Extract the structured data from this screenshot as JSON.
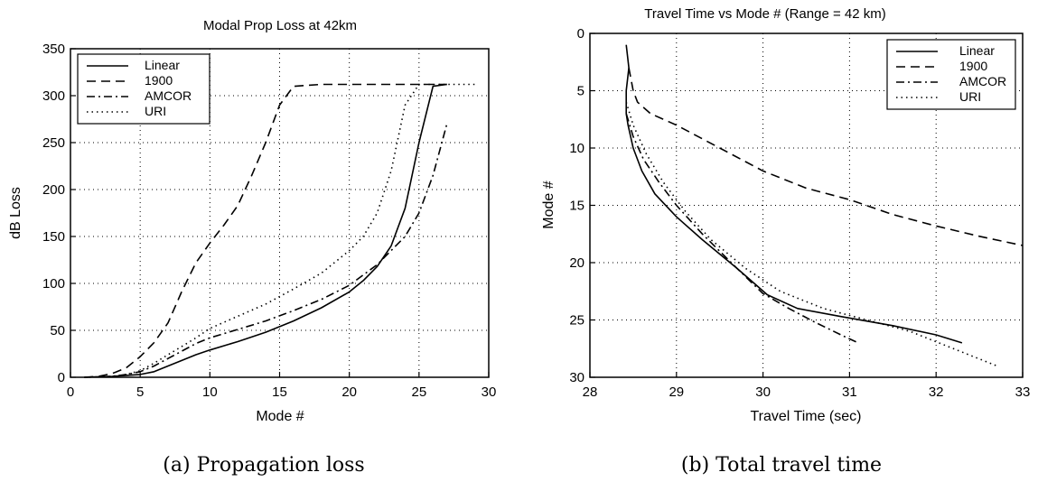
{
  "chart_data": [
    {
      "type": "line",
      "title": "Modal Prop Loss at 42km",
      "xlabel": "Mode #",
      "ylabel": "dB Loss",
      "xlim": [
        0,
        30
      ],
      "ylim": [
        0,
        350
      ],
      "xticks": [
        "0",
        "5",
        "10",
        "15",
        "20",
        "25",
        "30"
      ],
      "yticks": [
        "0",
        "50",
        "100",
        "150",
        "200",
        "250",
        "300",
        "350"
      ],
      "grid": true,
      "legend_position": "top-left",
      "caption": "(a) Propagation loss",
      "series": [
        {
          "name": "Linear",
          "style": "solid",
          "x": [
            1,
            2,
            3,
            4,
            5,
            6,
            7,
            8,
            9,
            10,
            12,
            14,
            16,
            18,
            20,
            21,
            22,
            23,
            24,
            25,
            26,
            27
          ],
          "y": [
            0,
            0.5,
            1,
            2,
            3,
            6,
            12,
            18,
            24,
            29,
            38,
            48,
            60,
            74,
            91,
            103,
            118,
            140,
            180,
            250,
            310,
            312
          ]
        },
        {
          "name": "1900",
          "style": "dashed",
          "x": [
            1,
            2,
            3,
            4,
            5,
            6,
            7,
            8,
            9,
            10,
            11,
            12,
            13,
            14,
            15,
            16,
            18,
            20,
            22,
            24,
            26,
            27
          ],
          "y": [
            0,
            1,
            4,
            10,
            22,
            37,
            58,
            92,
            122,
            143,
            162,
            183,
            215,
            250,
            290,
            310,
            312,
            312,
            312,
            312,
            312,
            312
          ]
        },
        {
          "name": "AMCOR",
          "style": "dashdot",
          "x": [
            1,
            2,
            3,
            4,
            5,
            6,
            7,
            8,
            9,
            10,
            12,
            14,
            16,
            18,
            20,
            22,
            23,
            24,
            25,
            26,
            27
          ],
          "y": [
            0,
            0.5,
            1,
            3,
            6,
            12,
            20,
            28,
            36,
            42,
            51,
            60,
            71,
            83,
            98,
            120,
            135,
            150,
            175,
            215,
            270
          ]
        },
        {
          "name": "URI",
          "style": "dotted",
          "x": [
            1,
            2,
            3,
            4,
            5,
            6,
            7,
            8,
            9,
            10,
            12,
            14,
            16,
            18,
            20,
            21,
            22,
            23,
            24,
            25,
            26,
            27,
            28,
            29
          ],
          "y": [
            0,
            0.5,
            1,
            3,
            7,
            15,
            24,
            33,
            42,
            52,
            65,
            78,
            94,
            111,
            135,
            150,
            175,
            220,
            290,
            312,
            312,
            312,
            312,
            312
          ]
        }
      ]
    },
    {
      "type": "line",
      "title": "Travel Time vs Mode # (Range = 42 km)",
      "xlabel": "Travel Time (sec)",
      "ylabel": "Mode #",
      "xlim": [
        28,
        33
      ],
      "ylim": [
        0,
        30
      ],
      "y_reversed": true,
      "xticks": [
        "28",
        "29",
        "30",
        "31",
        "32",
        "33"
      ],
      "yticks": [
        "0",
        "5",
        "10",
        "15",
        "20",
        "25",
        "30"
      ],
      "grid": true,
      "legend_position": "top-right",
      "caption": "(b) Total travel time",
      "series": [
        {
          "name": "Linear",
          "style": "solid",
          "x": [
            28.42,
            28.45,
            28.42,
            28.42,
            28.44,
            28.5,
            28.6,
            28.75,
            29.0,
            29.3,
            29.7,
            30.05,
            30.4,
            30.9,
            31.5,
            32.0,
            32.3
          ],
          "y": [
            1,
            3,
            5,
            7,
            8,
            10,
            12,
            14,
            16,
            18,
            20.5,
            22.8,
            24,
            24.7,
            25.5,
            26.3,
            27
          ]
        },
        {
          "name": "1900",
          "style": "dashed",
          "x": [
            28.45,
            28.5,
            28.55,
            28.7,
            29.0,
            29.5,
            30.0,
            30.5,
            31.0,
            31.5,
            32.0,
            32.5,
            33.0
          ],
          "y": [
            3,
            5,
            6,
            7,
            8,
            10,
            12,
            13.5,
            14.5,
            15.8,
            16.8,
            17.7,
            18.5
          ]
        },
        {
          "name": "AMCOR",
          "style": "dashdot",
          "x": [
            28.42,
            28.5,
            28.62,
            28.8,
            29.0,
            29.3,
            29.7,
            30.0,
            30.3,
            30.6,
            30.9,
            31.1
          ],
          "y": [
            7,
            9,
            11,
            13,
            15,
            17.5,
            20.5,
            22.7,
            24,
            25.2,
            26.3,
            27
          ]
        },
        {
          "name": "URI",
          "style": "dotted",
          "x": [
            28.42,
            28.5,
            28.65,
            28.85,
            29.1,
            29.4,
            29.8,
            30.2,
            30.7,
            31.2,
            31.7,
            32.2,
            32.7
          ],
          "y": [
            6,
            8,
            10.5,
            13,
            15.5,
            18,
            20.5,
            22.5,
            24,
            25,
            26,
            27.5,
            29
          ]
        }
      ]
    }
  ]
}
